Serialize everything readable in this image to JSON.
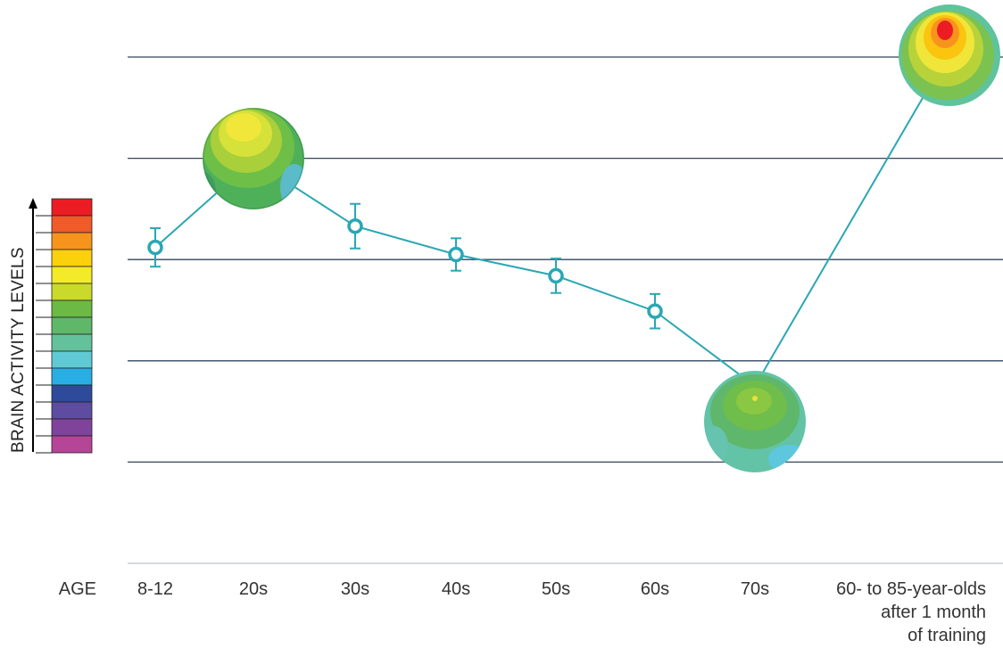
{
  "chart_data": {
    "type": "line",
    "ylabel": "BRAIN ACTIVITY LEVELS",
    "x_axis_prefix": "AGE",
    "categories": [
      "8-12",
      "20s",
      "30s",
      "40s",
      "50s",
      "60s",
      "70s",
      "60- to 85-year-olds after 1 month of training"
    ],
    "category_lines": [
      [
        "8-12"
      ],
      [
        "20s"
      ],
      [
        "30s"
      ],
      [
        "40s"
      ],
      [
        "50s"
      ],
      [
        "60s"
      ],
      [
        "70s"
      ],
      [
        "60- to 85-year-olds",
        "after 1 month",
        "of training"
      ]
    ],
    "series": [
      {
        "values": [
          3.12,
          3.98,
          3.33,
          3.05,
          2.84,
          2.49,
          1.75,
          5.05
        ],
        "error": [
          0.19,
          null,
          0.22,
          0.16,
          0.17,
          0.17,
          null,
          null
        ]
      }
    ],
    "brain_maps_at": [
      "20s",
      "70s",
      "60- to 85-year-olds after 1 month of training"
    ],
    "ylim": [
      0,
      5.5
    ],
    "grid": true,
    "colors": {
      "line": "#2aa7b4",
      "grid": "#33465c",
      "scale": [
        "#ec1c24",
        "#f15a29",
        "#f7941d",
        "#fbd10b",
        "#f3ea2a",
        "#c9da2b",
        "#6db945",
        "#5fb86a",
        "#63c29c",
        "#5fcad3",
        "#29aee4",
        "#2e4b9b",
        "#5d4ca0",
        "#80439b",
        "#b44597"
      ]
    }
  }
}
